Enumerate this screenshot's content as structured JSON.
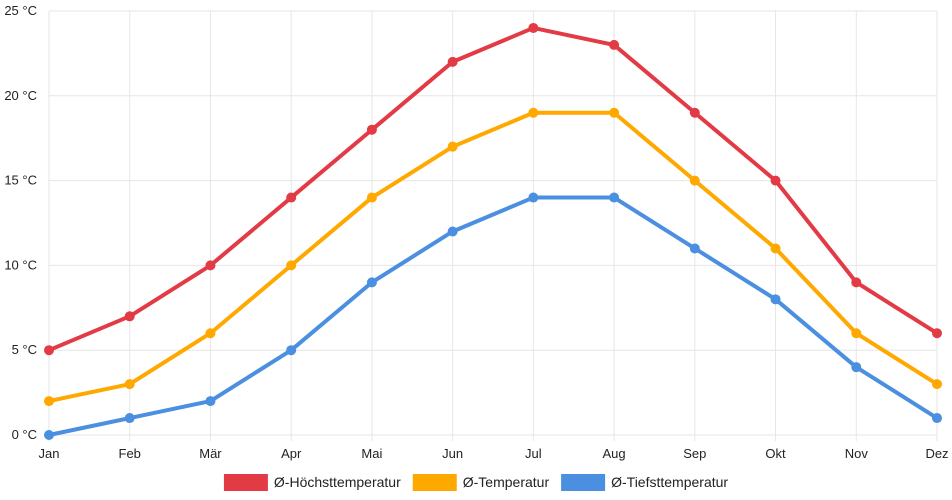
{
  "chart_data": {
    "type": "line",
    "categories": [
      "Jan",
      "Feb",
      "Mär",
      "Apr",
      "Mai",
      "Jun",
      "Jul",
      "Aug",
      "Sep",
      "Okt",
      "Nov",
      "Dez"
    ],
    "series": [
      {
        "name": "Ø-Höchsttemperatur",
        "color": "#e23b45",
        "values": [
          5,
          7,
          10,
          14,
          18,
          22,
          24,
          23,
          19,
          15,
          9,
          6
        ]
      },
      {
        "name": "Ø-Temperatur",
        "color": "#ffa800",
        "values": [
          2,
          3,
          6,
          10,
          14,
          17,
          19,
          19,
          15,
          11,
          6,
          3
        ]
      },
      {
        "name": "Ø-Tiefsttemperatur",
        "color": "#4a8fe0",
        "values": [
          0,
          1,
          2,
          5,
          9,
          12,
          14,
          14,
          11,
          8,
          4,
          1
        ]
      }
    ],
    "ylim": [
      0,
      25
    ],
    "yticks": [
      0,
      5,
      10,
      15,
      20,
      25
    ],
    "ytick_labels": [
      "0 °C",
      "5 °C",
      "10 °C",
      "15 °C",
      "20 °C",
      "25 °C"
    ],
    "grid": true,
    "legend_position": "bottom"
  }
}
